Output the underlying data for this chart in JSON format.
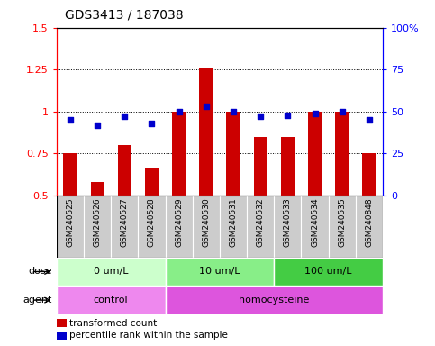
{
  "title": "GDS3413 / 187038",
  "samples": [
    "GSM240525",
    "GSM240526",
    "GSM240527",
    "GSM240528",
    "GSM240529",
    "GSM240530",
    "GSM240531",
    "GSM240532",
    "GSM240533",
    "GSM240534",
    "GSM240535",
    "GSM240848"
  ],
  "transformed_count": [
    0.75,
    0.58,
    0.8,
    0.66,
    1.0,
    1.26,
    1.0,
    0.85,
    0.85,
    1.0,
    1.0,
    0.75
  ],
  "percentile_rank": [
    45,
    42,
    47,
    43,
    50,
    53,
    50,
    47,
    48,
    49,
    50,
    45
  ],
  "bar_color": "#cc0000",
  "dot_color": "#0000cc",
  "ylim_left": [
    0.5,
    1.5
  ],
  "ylim_right": [
    0,
    100
  ],
  "yticks_left": [
    0.5,
    0.75,
    1.0,
    1.25,
    1.5
  ],
  "yticks_right": [
    0,
    25,
    50,
    75,
    100
  ],
  "ytick_labels_left": [
    "0.5",
    "0.75",
    "1",
    "1.25",
    "1.5"
  ],
  "ytick_labels_right": [
    "0",
    "25",
    "50",
    "75",
    "100%"
  ],
  "hlines": [
    0.75,
    1.0,
    1.25
  ],
  "dose_groups": [
    {
      "label": "0 um/L",
      "start": 0,
      "end": 4,
      "color": "#ccffcc"
    },
    {
      "label": "10 um/L",
      "start": 4,
      "end": 8,
      "color": "#88ee88"
    },
    {
      "label": "100 um/L",
      "start": 8,
      "end": 12,
      "color": "#44cc44"
    }
  ],
  "agent_groups": [
    {
      "label": "control",
      "start": 0,
      "end": 4,
      "color": "#ee88ee"
    },
    {
      "label": "homocysteine",
      "start": 4,
      "end": 12,
      "color": "#dd55dd"
    }
  ],
  "legend_items": [
    {
      "color": "#cc0000",
      "label": "transformed count"
    },
    {
      "color": "#0000cc",
      "label": "percentile rank within the sample"
    }
  ],
  "bar_width": 0.5,
  "sample_bg_color": "#cccccc",
  "sample_border_color": "#ffffff"
}
